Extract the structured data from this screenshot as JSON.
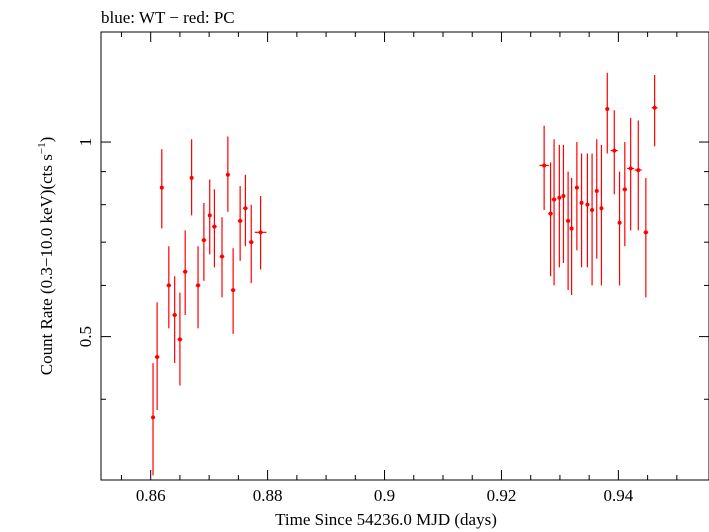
{
  "chart_data": {
    "type": "scatter",
    "title": "blue: WT − red: PC",
    "xlabel": "Time Since 54236.0 MJD (days)",
    "ylabel_parts": {
      "prefix": "Count Rate (0.3−10.0 keV)(cts s",
      "sup": "−1",
      "suffix": ")"
    },
    "x_ticks": [
      0.86,
      0.88,
      0.9,
      0.92,
      0.94
    ],
    "x_tick_labels": [
      "0.86",
      "0.88",
      "0.9",
      "0.92",
      "0.94"
    ],
    "y_ticks": [
      0.5,
      1
    ],
    "y_tick_labels": [
      "0.5",
      "1"
    ],
    "xlim": [
      0.8515,
      0.9555
    ],
    "ylim": [
      0.3,
      1.48
    ],
    "y_scale": "log",
    "grid": false,
    "series": [
      {
        "color": "#ff0000",
        "points": [
          {
            "x": 0.8604,
            "y": 0.375,
            "xerr": 0.0003,
            "ylo": 0.305,
            "yhi": 0.455
          },
          {
            "x": 0.8611,
            "y": 0.465,
            "xerr": 0.0004,
            "ylo": 0.385,
            "yhi": 0.565
          },
          {
            "x": 0.8619,
            "y": 0.85,
            "xerr": 0.0003,
            "ylo": 0.735,
            "yhi": 0.975
          },
          {
            "x": 0.8631,
            "y": 0.6,
            "xerr": 0.0004,
            "ylo": 0.515,
            "yhi": 0.69
          },
          {
            "x": 0.8641,
            "y": 0.54,
            "xerr": 0.0004,
            "ylo": 0.455,
            "yhi": 0.62
          },
          {
            "x": 0.865,
            "y": 0.495,
            "xerr": 0.0004,
            "ylo": 0.42,
            "yhi": 0.585
          },
          {
            "x": 0.8659,
            "y": 0.63,
            "xerr": 0.0004,
            "ylo": 0.54,
            "yhi": 0.73
          },
          {
            "x": 0.867,
            "y": 0.88,
            "xerr": 0.0003,
            "ylo": 0.77,
            "yhi": 1.01
          },
          {
            "x": 0.8681,
            "y": 0.6,
            "xerr": 0.0004,
            "ylo": 0.515,
            "yhi": 0.69
          },
          {
            "x": 0.8691,
            "y": 0.705,
            "xerr": 0.0004,
            "ylo": 0.61,
            "yhi": 0.805
          },
          {
            "x": 0.8701,
            "y": 0.77,
            "xerr": 0.0003,
            "ylo": 0.67,
            "yhi": 0.875
          },
          {
            "x": 0.8709,
            "y": 0.74,
            "xerr": 0.0004,
            "ylo": 0.64,
            "yhi": 0.845
          },
          {
            "x": 0.8722,
            "y": 0.665,
            "xerr": 0.0004,
            "ylo": 0.575,
            "yhi": 0.765
          },
          {
            "x": 0.8732,
            "y": 0.89,
            "xerr": 0.0003,
            "ylo": 0.78,
            "yhi": 1.02
          },
          {
            "x": 0.8741,
            "y": 0.59,
            "xerr": 0.0004,
            "ylo": 0.505,
            "yhi": 0.685
          },
          {
            "x": 0.8753,
            "y": 0.755,
            "xerr": 0.0004,
            "ylo": 0.655,
            "yhi": 0.855
          },
          {
            "x": 0.8762,
            "y": 0.79,
            "xerr": 0.0004,
            "ylo": 0.69,
            "yhi": 0.89
          },
          {
            "x": 0.8772,
            "y": 0.7,
            "xerr": 0.0004,
            "ylo": 0.605,
            "yhi": 0.8
          },
          {
            "x": 0.8788,
            "y": 0.725,
            "xerr": 0.001,
            "ylo": 0.635,
            "yhi": 0.825
          },
          {
            "x": 0.9273,
            "y": 0.92,
            "xerr": 0.0008,
            "ylo": 0.785,
            "yhi": 1.06
          },
          {
            "x": 0.9284,
            "y": 0.775,
            "xerr": 0.0004,
            "ylo": 0.62,
            "yhi": 0.93
          },
          {
            "x": 0.929,
            "y": 0.815,
            "xerr": 0.0004,
            "ylo": 0.6,
            "yhi": 1.01
          },
          {
            "x": 0.9299,
            "y": 0.82,
            "xerr": 0.0003,
            "ylo": 0.64,
            "yhi": 0.99
          },
          {
            "x": 0.9306,
            "y": 0.825,
            "xerr": 0.0003,
            "ylo": 0.65,
            "yhi": 0.99
          },
          {
            "x": 0.9314,
            "y": 0.755,
            "xerr": 0.0003,
            "ylo": 0.59,
            "yhi": 0.9
          },
          {
            "x": 0.932,
            "y": 0.735,
            "xerr": 0.0003,
            "ylo": 0.58,
            "yhi": 0.88
          },
          {
            "x": 0.9329,
            "y": 0.85,
            "xerr": 0.0003,
            "ylo": 0.68,
            "yhi": 1.0
          },
          {
            "x": 0.9337,
            "y": 0.805,
            "xerr": 0.0003,
            "ylo": 0.64,
            "yhi": 0.96
          },
          {
            "x": 0.9347,
            "y": 0.8,
            "xerr": 0.0003,
            "ylo": 0.64,
            "yhi": 0.96
          },
          {
            "x": 0.9355,
            "y": 0.785,
            "xerr": 0.0003,
            "ylo": 0.6,
            "yhi": 0.96
          },
          {
            "x": 0.9363,
            "y": 0.84,
            "xerr": 0.0003,
            "ylo": 0.66,
            "yhi": 1.01
          },
          {
            "x": 0.9371,
            "y": 0.79,
            "xerr": 0.0003,
            "ylo": 0.6,
            "yhi": 0.99
          },
          {
            "x": 0.9381,
            "y": 1.125,
            "xerr": 0.0003,
            "ylo": 0.96,
            "yhi": 1.28
          },
          {
            "x": 0.9393,
            "y": 0.97,
            "xerr": 0.0006,
            "ylo": 0.83,
            "yhi": 1.12
          },
          {
            "x": 0.9402,
            "y": 0.75,
            "xerr": 0.0003,
            "ylo": 0.6,
            "yhi": 0.9
          },
          {
            "x": 0.9411,
            "y": 0.845,
            "xerr": 0.0004,
            "ylo": 0.69,
            "yhi": 1.0
          },
          {
            "x": 0.9421,
            "y": 0.91,
            "xerr": 0.0006,
            "ylo": 0.73,
            "yhi": 1.09
          },
          {
            "x": 0.9434,
            "y": 0.905,
            "xerr": 0.0006,
            "ylo": 0.73,
            "yhi": 1.08
          },
          {
            "x": 0.9447,
            "y": 0.725,
            "xerr": 0.0004,
            "ylo": 0.575,
            "yhi": 0.88
          },
          {
            "x": 0.9462,
            "y": 1.13,
            "xerr": 0.0005,
            "ylo": 0.985,
            "yhi": 1.27
          }
        ]
      }
    ]
  }
}
